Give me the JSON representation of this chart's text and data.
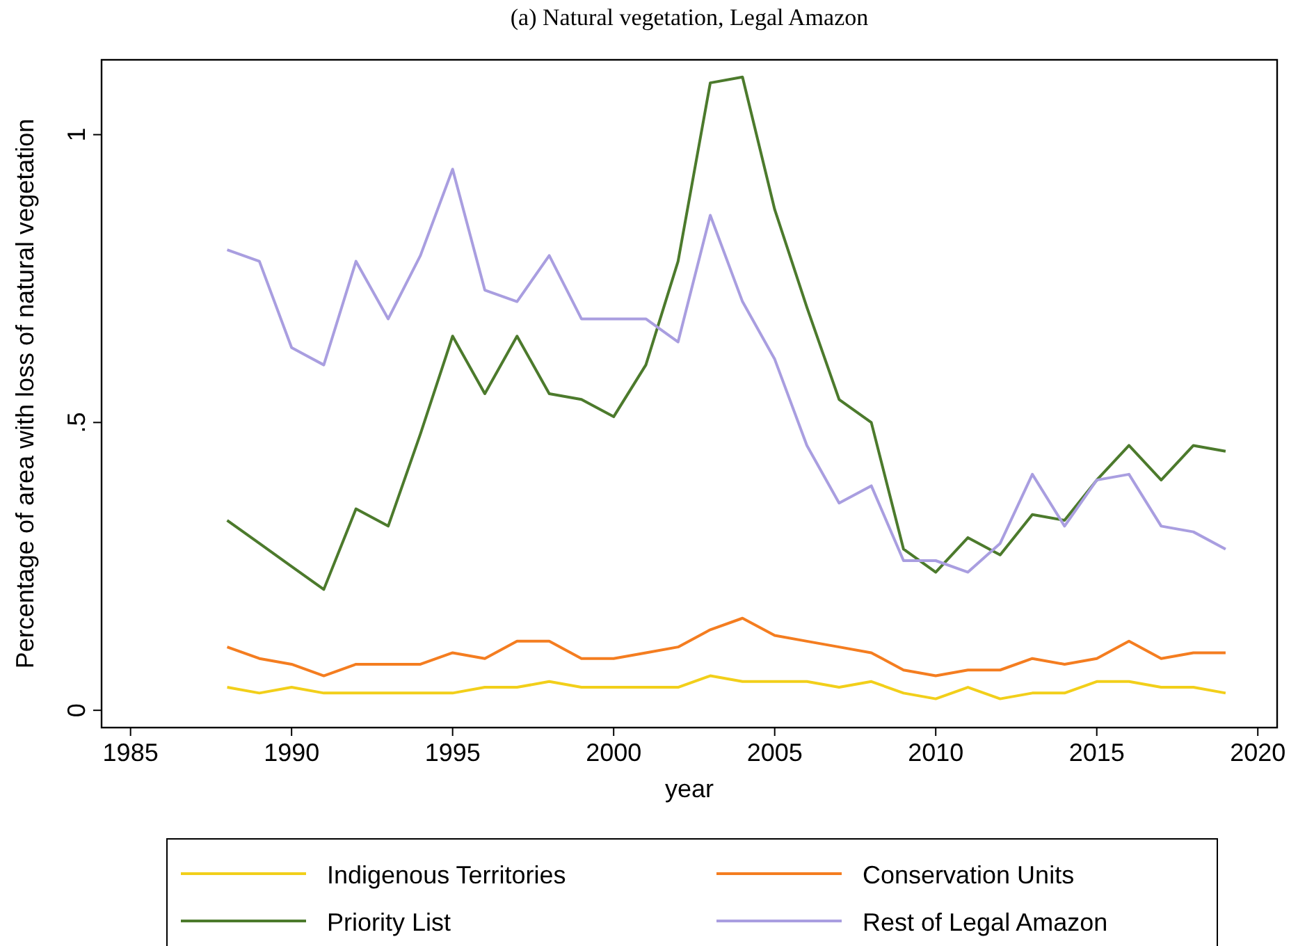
{
  "chart_data": {
    "type": "line",
    "title": "(a) Natural vegetation, Legal Amazon",
    "xlabel": "year",
    "ylabel": "Percentage of area with loss of natural vegetation",
    "x": [
      1988,
      1989,
      1990,
      1991,
      1992,
      1993,
      1994,
      1995,
      1996,
      1997,
      1998,
      1999,
      2000,
      2001,
      2002,
      2003,
      2004,
      2005,
      2006,
      2007,
      2008,
      2009,
      2010,
      2011,
      2012,
      2013,
      2014,
      2015,
      2016,
      2017,
      2018,
      2019
    ],
    "series": [
      {
        "name": "Indigenous Territories",
        "color": "#f2cf1a",
        "values": [
          0.04,
          0.03,
          0.04,
          0.03,
          0.03,
          0.03,
          0.03,
          0.03,
          0.04,
          0.04,
          0.05,
          0.04,
          0.04,
          0.04,
          0.04,
          0.06,
          0.05,
          0.05,
          0.05,
          0.04,
          0.05,
          0.03,
          0.02,
          0.04,
          0.02,
          0.03,
          0.03,
          0.05,
          0.05,
          0.04,
          0.04,
          0.03
        ]
      },
      {
        "name": "Conservation Units",
        "color": "#f47d20",
        "values": [
          0.11,
          0.09,
          0.08,
          0.06,
          0.08,
          0.08,
          0.08,
          0.1,
          0.09,
          0.12,
          0.12,
          0.09,
          0.09,
          0.1,
          0.11,
          0.14,
          0.16,
          0.13,
          0.12,
          0.11,
          0.1,
          0.07,
          0.06,
          0.07,
          0.07,
          0.09,
          0.08,
          0.09,
          0.12,
          0.09,
          0.1,
          0.1
        ]
      },
      {
        "name": "Priority List",
        "color": "#4c7a2c",
        "values": [
          0.33,
          0.29,
          0.25,
          0.21,
          0.35,
          0.32,
          0.48,
          0.65,
          0.55,
          0.65,
          0.55,
          0.54,
          0.51,
          0.6,
          0.78,
          1.09,
          1.1,
          0.87,
          0.7,
          0.54,
          0.5,
          0.28,
          0.24,
          0.3,
          0.27,
          0.34,
          0.33,
          0.4,
          0.46,
          0.4,
          0.46,
          0.45
        ]
      },
      {
        "name": "Rest of Legal Amazon",
        "color": "#a99ee0",
        "values": [
          0.8,
          0.78,
          0.63,
          0.6,
          0.78,
          0.68,
          0.79,
          0.94,
          0.73,
          0.71,
          0.79,
          0.68,
          0.68,
          0.68,
          0.64,
          0.86,
          0.71,
          0.61,
          0.46,
          0.36,
          0.39,
          0.26,
          0.26,
          0.24,
          0.29,
          0.41,
          0.32,
          0.4,
          0.41,
          0.32,
          0.31,
          0.28
        ]
      }
    ],
    "xlim": [
      1984.1,
      2020.6
    ],
    "xticks": [
      1985,
      1990,
      1995,
      2000,
      2005,
      2010,
      2015,
      2020
    ],
    "ylim": [
      -0.03,
      1.13
    ],
    "yticks": [
      0,
      {
        "value": 0.5,
        "label": ".5"
      },
      1
    ],
    "grid": false,
    "legend": "bottom",
    "marker": "none",
    "line_style": "solid"
  }
}
